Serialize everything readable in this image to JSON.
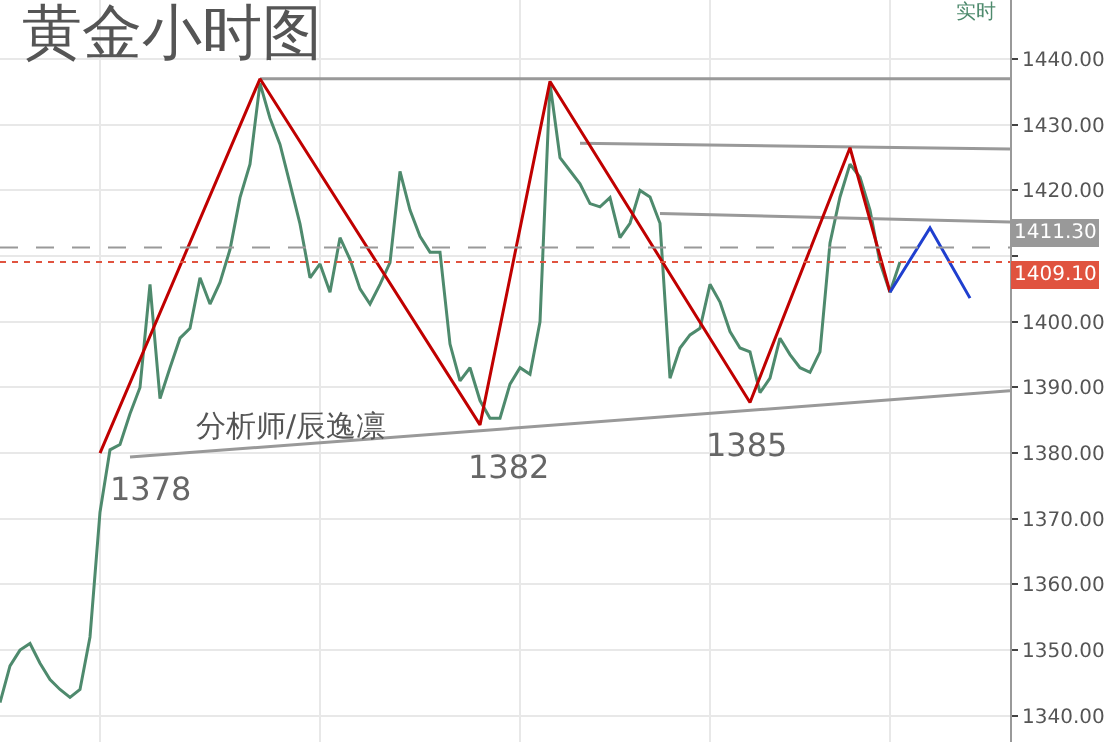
{
  "chart_data": {
    "type": "line",
    "title": "黄金小时图",
    "annotations": [
      "实时",
      "分析师/辰逸凛",
      "1378",
      "1382",
      "1385"
    ],
    "categories": [
      null,
      null,
      null,
      null,
      null,
      null,
      null,
      null,
      null,
      null,
      null,
      null,
      null,
      null,
      null,
      null,
      null,
      null,
      null,
      null,
      null,
      null,
      null,
      null,
      null,
      null,
      null,
      null,
      null,
      null,
      null,
      null,
      null,
      null,
      null,
      null,
      null,
      null,
      null,
      null,
      null,
      null,
      null,
      null,
      null,
      null,
      null,
      null,
      null,
      null,
      null,
      null,
      null,
      null,
      null,
      null,
      null,
      null,
      null,
      null,
      null,
      null,
      null,
      null,
      null,
      null,
      null,
      null,
      null,
      null,
      null,
      null,
      null,
      null,
      null,
      null,
      null,
      null,
      null,
      null,
      null,
      null,
      null,
      null,
      null,
      null,
      null,
      null,
      null,
      null,
      null,
      null,
      null,
      null,
      null,
      null,
      null,
      null,
      null,
      null,
      null,
      null
    ],
    "ylim": [
      1336,
      1449
    ],
    "yticks": [
      {
        "value": 1340,
        "label": "1340.00"
      },
      {
        "value": 1350,
        "label": "1350.00"
      },
      {
        "value": 1360,
        "label": "1360.00"
      },
      {
        "value": 1370,
        "label": "1370.00"
      },
      {
        "value": 1380,
        "label": "1380.00"
      },
      {
        "value": 1390,
        "label": "1390.00"
      },
      {
        "value": 1400,
        "label": "1400.00"
      },
      {
        "value": 1410,
        "label": null
      },
      {
        "value": 1420,
        "label": "1420.00"
      },
      {
        "value": 1430,
        "label": "1430.00"
      },
      {
        "value": 1440,
        "label": "1440.00"
      }
    ],
    "tick_labels": "y",
    "grid": true,
    "line_style": "solid",
    "marker": "none",
    "ref_lines": [
      {
        "axis": "y",
        "value": 1411.3,
        "label": "1411.30",
        "color": "#999999",
        "line_style": "dashed"
      },
      {
        "axis": "y",
        "value": 1409.1,
        "label": "1409.10",
        "color": "#e0533f",
        "line_style": "dotted"
      }
    ],
    "series": [
      {
        "color": "#4e8a6d",
        "values": [
          1342,
          1347.6,
          1350,
          1351,
          1348,
          1345.5,
          1344,
          1342.8,
          1344,
          1352,
          1371,
          1380.5,
          1381.3,
          1386,
          1390,
          1405.7,
          1388.3,
          1393,
          1397.5,
          1399,
          1406.7,
          1402.7,
          1406,
          1411,
          1418.9,
          1424,
          1436.3,
          1431,
          1427,
          1421,
          1414.9,
          1406.7,
          1408.8,
          1404.5,
          1412.8,
          1409.5,
          1405,
          1402.7,
          1405.7,
          1409,
          1422.9,
          1417,
          1413,
          1410.6,
          1410.6,
          1396.6,
          1391,
          1393,
          1388,
          1385.3,
          1385.3,
          1390.5,
          1393,
          1392,
          1400,
          1436.3,
          1425,
          1423,
          1421,
          1418,
          1417.5,
          1418.9,
          1412.8,
          1415,
          1420,
          1419,
          1415,
          1391.4,
          1396,
          1398,
          1399,
          1405.7,
          1403,
          1398.5,
          1396,
          1395.4,
          1389.2,
          1391.4,
          1397.5,
          1395,
          1393,
          1392.3,
          1395.4,
          1412,
          1419,
          1424,
          1422,
          1417,
          1409,
          1404.5,
          1409.1,
          null,
          null,
          null,
          null,
          null,
          null,
          null,
          null,
          null,
          null,
          null
        ]
      },
      {
        "color": "#999999",
        "values": [
          null,
          null,
          null,
          null,
          null,
          null,
          null,
          null,
          null,
          null,
          null,
          null,
          null,
          null,
          null,
          null,
          null,
          null,
          null,
          null,
          null,
          null,
          null,
          null,
          null,
          null,
          1437,
          null,
          null,
          null,
          null,
          null,
          null,
          null,
          null,
          null,
          null,
          null,
          null,
          null,
          null,
          null,
          null,
          null,
          null,
          null,
          null,
          null,
          null,
          null,
          null,
          null,
          null,
          null,
          null,
          null,
          null,
          null,
          null,
          null,
          null,
          null,
          null,
          null,
          null,
          null,
          null,
          null,
          null,
          null,
          null,
          null,
          null,
          null,
          null,
          null,
          null,
          null,
          null,
          null,
          null,
          null,
          null,
          null,
          null,
          null,
          null,
          null,
          null,
          null,
          null,
          null,
          null,
          null,
          null,
          null,
          null,
          null,
          null,
          null,
          null,
          1437
        ]
      },
      {
        "color": "#999999",
        "values": [
          null,
          null,
          null,
          null,
          null,
          null,
          null,
          null,
          null,
          null,
          null,
          null,
          null,
          null,
          null,
          null,
          null,
          null,
          null,
          null,
          null,
          null,
          null,
          null,
          null,
          null,
          null,
          null,
          null,
          null,
          null,
          null,
          null,
          null,
          null,
          null,
          null,
          null,
          null,
          null,
          null,
          null,
          null,
          null,
          null,
          null,
          null,
          null,
          null,
          null,
          null,
          null,
          null,
          null,
          null,
          null,
          null,
          null,
          1427.2,
          null,
          null,
          null,
          null,
          null,
          null,
          null,
          null,
          null,
          null,
          null,
          null,
          null,
          null,
          null,
          null,
          null,
          null,
          null,
          null,
          null,
          null,
          null,
          null,
          null,
          null,
          null,
          null,
          null,
          null,
          null,
          null,
          null,
          null,
          null,
          null,
          null,
          null,
          null,
          null,
          null,
          null,
          1426.3
        ]
      },
      {
        "color": "#999999",
        "values": [
          null,
          null,
          null,
          null,
          null,
          null,
          null,
          null,
          null,
          null,
          null,
          null,
          null,
          null,
          null,
          null,
          null,
          null,
          null,
          null,
          null,
          null,
          null,
          null,
          null,
          null,
          null,
          null,
          null,
          null,
          null,
          null,
          null,
          null,
          null,
          null,
          null,
          null,
          null,
          null,
          null,
          null,
          null,
          null,
          null,
          null,
          null,
          null,
          null,
          null,
          null,
          null,
          null,
          null,
          null,
          null,
          null,
          null,
          null,
          null,
          null,
          null,
          null,
          null,
          null,
          null,
          1416.5,
          null,
          null,
          null,
          null,
          null,
          null,
          null,
          null,
          null,
          null,
          null,
          null,
          null,
          null,
          null,
          null,
          null,
          null,
          null,
          null,
          null,
          null,
          null,
          null,
          null,
          null,
          null,
          null,
          null,
          null,
          null,
          null,
          null,
          null,
          1415.2
        ]
      },
      {
        "color": "#999999",
        "values": [
          null,
          null,
          null,
          null,
          null,
          null,
          null,
          null,
          null,
          null,
          null,
          null,
          null,
          1379.4,
          null,
          null,
          null,
          null,
          null,
          null,
          null,
          null,
          null,
          null,
          null,
          null,
          null,
          null,
          null,
          null,
          null,
          null,
          null,
          null,
          null,
          null,
          null,
          null,
          null,
          null,
          null,
          null,
          null,
          null,
          null,
          null,
          null,
          null,
          null,
          null,
          null,
          null,
          null,
          null,
          null,
          null,
          null,
          null,
          null,
          null,
          null,
          null,
          null,
          null,
          null,
          null,
          null,
          null,
          null,
          null,
          null,
          null,
          null,
          null,
          null,
          null,
          null,
          null,
          null,
          null,
          null,
          null,
          null,
          null,
          null,
          null,
          null,
          null,
          null,
          null,
          null,
          null,
          null,
          null,
          null,
          null,
          null,
          null,
          null,
          null,
          null,
          1389.5
        ]
      },
      {
        "color": "#c00000",
        "values": [
          null,
          null,
          null,
          null,
          null,
          null,
          null,
          null,
          null,
          null,
          1380,
          null,
          null,
          null,
          null,
          null,
          null,
          null,
          null,
          null,
          null,
          null,
          null,
          null,
          null,
          null,
          1437,
          null,
          null,
          null,
          null,
          null,
          null,
          null,
          null,
          null,
          null,
          null,
          null,
          null,
          null,
          null,
          null,
          null,
          null,
          null,
          null,
          null,
          1384.3,
          null,
          null,
          null,
          null,
          null,
          null,
          1436.6,
          null,
          null,
          null,
          null,
          null,
          null,
          null,
          null,
          null,
          null,
          null,
          null,
          null,
          null,
          null,
          null,
          null,
          null,
          null,
          1387.7,
          null,
          null,
          null,
          null,
          null,
          null,
          null,
          null,
          null,
          1426.5,
          null,
          null,
          null,
          1404.5,
          null,
          null,
          null,
          null,
          null,
          null,
          null,
          null,
          null,
          null,
          null,
          null
        ]
      },
      {
        "color": "#1f3fcf",
        "values": [
          null,
          null,
          null,
          null,
          null,
          null,
          null,
          null,
          null,
          null,
          null,
          null,
          null,
          null,
          null,
          null,
          null,
          null,
          null,
          null,
          null,
          null,
          null,
          null,
          null,
          null,
          null,
          null,
          null,
          null,
          null,
          null,
          null,
          null,
          null,
          null,
          null,
          null,
          null,
          null,
          null,
          null,
          null,
          null,
          null,
          null,
          null,
          null,
          null,
          null,
          null,
          null,
          null,
          null,
          null,
          null,
          null,
          null,
          null,
          null,
          null,
          null,
          null,
          null,
          null,
          null,
          null,
          null,
          null,
          null,
          null,
          null,
          null,
          null,
          null,
          null,
          null,
          null,
          null,
          null,
          null,
          null,
          null,
          null,
          null,
          null,
          null,
          null,
          null,
          1404.5,
          null,
          null,
          null,
          1414.3,
          null,
          null,
          null,
          1403.6,
          null,
          null,
          null,
          null
        ]
      }
    ]
  }
}
